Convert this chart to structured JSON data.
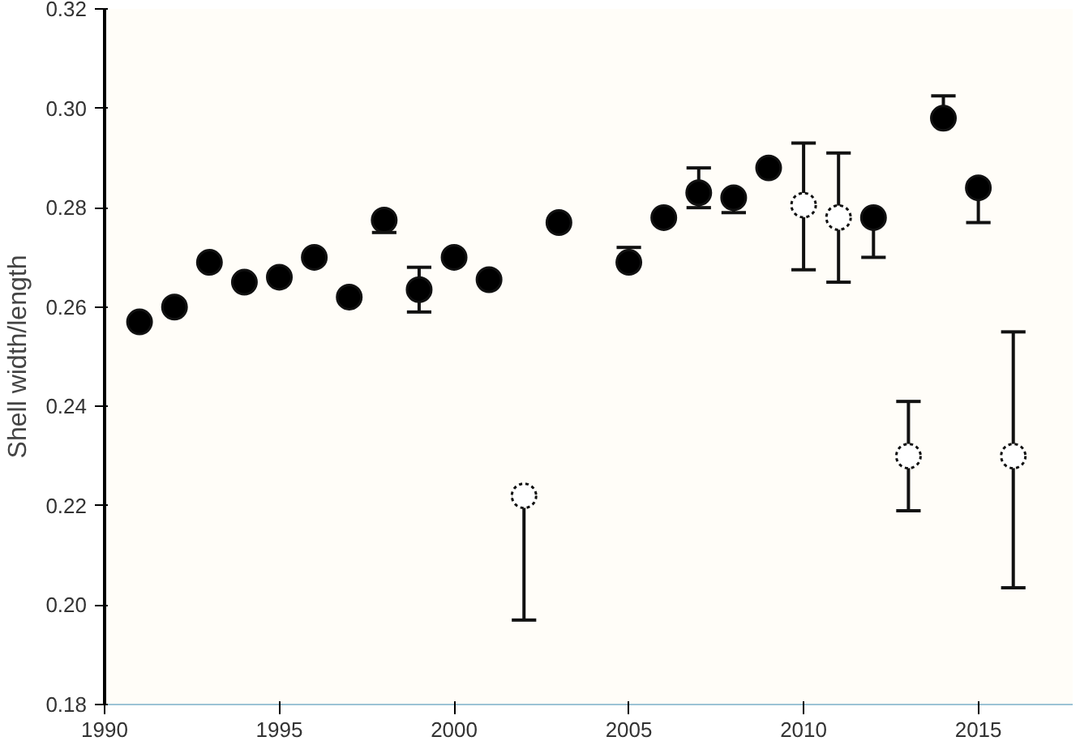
{
  "chart_data": {
    "type": "scatter",
    "ylabel": "Shell width/length",
    "xlim": [
      1990,
      2017.7
    ],
    "ylim": [
      0.18,
      0.32
    ],
    "xticks": [
      1990,
      1995,
      2000,
      2005,
      2010,
      2015
    ],
    "yticks": [
      0.18,
      {
        "value": 0.2,
        "label": "0.20"
      },
      0.22,
      0.24,
      0.26,
      0.28,
      {
        "value": 0.3,
        "label": "0.30"
      },
      0.32
    ],
    "grid": false,
    "marker": "circle",
    "series": [
      {
        "color": "#000000",
        "x": [
          1991,
          1992,
          1993,
          1994,
          1995,
          1996,
          1997,
          1998,
          1999,
          2000,
          2001,
          2003,
          2005,
          2006,
          2007,
          2008,
          2009,
          2012,
          2014,
          2015
        ],
        "values": [
          0.257,
          0.26,
          0.269,
          0.265,
          0.266,
          0.27,
          0.262,
          0.2775,
          0.2635,
          0.27,
          0.2655,
          0.277,
          0.269,
          0.278,
          0.283,
          0.282,
          0.288,
          0.278,
          0.298,
          0.284
        ],
        "errors": [
          null,
          null,
          null,
          null,
          null,
          null,
          null,
          [
            0.275,
            0.2775
          ],
          [
            0.259,
            0.268
          ],
          null,
          null,
          null,
          [
            0.269,
            0.272
          ],
          null,
          [
            0.28,
            0.288
          ],
          [
            0.279,
            0.282
          ],
          null,
          [
            0.27,
            0.278
          ],
          [
            0.298,
            0.3025
          ],
          [
            0.277,
            0.284
          ]
        ]
      },
      {
        "color": "#ffffff",
        "x": [
          2002,
          2010,
          2011,
          2013,
          2016
        ],
        "values": [
          0.222,
          0.2805,
          0.278,
          0.23,
          0.23
        ],
        "errors": [
          [
            0.197,
            0.222
          ],
          [
            0.2675,
            0.293
          ],
          [
            0.265,
            0.291
          ],
          [
            0.219,
            0.241
          ],
          [
            0.2035,
            0.255
          ]
        ]
      }
    ]
  }
}
